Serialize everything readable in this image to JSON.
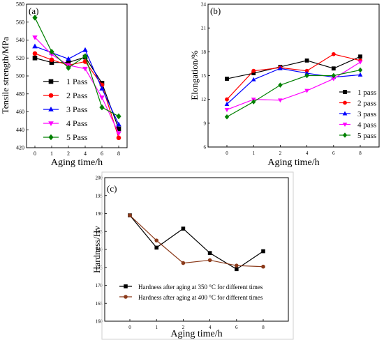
{
  "chart_data": [
    {
      "type": "line",
      "panel_label": "(a)",
      "xlabel": "Aging time/h",
      "ylabel": "Tensile strength/MPa",
      "categories": [
        "0",
        "1",
        "2",
        "4",
        "6",
        "8"
      ],
      "ylim": [
        420,
        580
      ],
      "yticks": [
        420,
        440,
        460,
        480,
        500,
        520,
        540,
        560,
        580
      ],
      "legend_position": "center-left",
      "series": [
        {
          "name": "1 Pass",
          "color": "#000000",
          "marker": "square",
          "values": [
            520,
            515,
            515,
            521,
            492,
            441
          ]
        },
        {
          "name": "2 Pass",
          "color": "#ff0000",
          "marker": "circle",
          "values": [
            525,
            518,
            512,
            516,
            490,
            431
          ]
        },
        {
          "name": "3 Pass",
          "color": "#0000ff",
          "marker": "triangle",
          "values": [
            533,
            526,
            519,
            529,
            486,
            446
          ]
        },
        {
          "name": "4 Pass",
          "color": "#ff00ff",
          "marker": "tri-down",
          "values": [
            543,
            524,
            512,
            508,
            476,
            436
          ]
        },
        {
          "name": "5 Pass",
          "color": "#008000",
          "marker": "diamond",
          "values": [
            565,
            527,
            509,
            522,
            465,
            455
          ]
        }
      ]
    },
    {
      "type": "line",
      "panel_label": "(b)",
      "xlabel": "Aging time/h",
      "ylabel": "Elongation/%",
      "categories": [
        "0",
        "1",
        "2",
        "4",
        "6",
        "8"
      ],
      "ylim": [
        6,
        24
      ],
      "yticks": [
        6,
        9,
        12,
        15,
        18,
        21,
        24
      ],
      "legend_position": "right",
      "series": [
        {
          "name": "1 pass",
          "color": "#000000",
          "marker": "square",
          "values": [
            14.6,
            15.3,
            16.1,
            16.9,
            15.9,
            17.4
          ]
        },
        {
          "name": "2 pass",
          "color": "#ff0000",
          "marker": "circle",
          "values": [
            12.0,
            15.6,
            16.0,
            15.6,
            17.7,
            16.9
          ]
        },
        {
          "name": "3 pass",
          "color": "#0000ff",
          "marker": "triangle",
          "values": [
            11.4,
            14.5,
            15.9,
            15.3,
            14.8,
            15.1
          ]
        },
        {
          "name": "4 pass",
          "color": "#ff00ff",
          "marker": "tri-down",
          "values": [
            10.7,
            12.0,
            11.9,
            13.1,
            14.6,
            16.7
          ]
        },
        {
          "name": "5 pass",
          "color": "#008000",
          "marker": "diamond",
          "values": [
            9.8,
            11.7,
            13.8,
            15.0,
            15.0,
            15.7
          ]
        }
      ]
    },
    {
      "type": "line",
      "panel_label": "(c)",
      "xlabel": "Aging time/h",
      "ylabel": "Hardness/Hv",
      "categories": [
        "0",
        "1",
        "2",
        "4",
        "6",
        "8"
      ],
      "ylim": [
        160,
        200
      ],
      "yticks": [
        160,
        165,
        170,
        175,
        180,
        185,
        190,
        195,
        200
      ],
      "legend_position": "bottom-left",
      "series": [
        {
          "name": "Hardness after aging at 350 °C for different times",
          "color": "#000000",
          "marker": "square",
          "values": [
            189.5,
            180.5,
            185.8,
            179.0,
            174.5,
            179.5
          ]
        },
        {
          "name": "Hardness after aging at 400 °C for different times",
          "color": "#8b3a1a",
          "marker": "circle",
          "values": [
            189.5,
            182.5,
            176.2,
            177.0,
            175.5,
            175.2
          ]
        }
      ]
    }
  ]
}
